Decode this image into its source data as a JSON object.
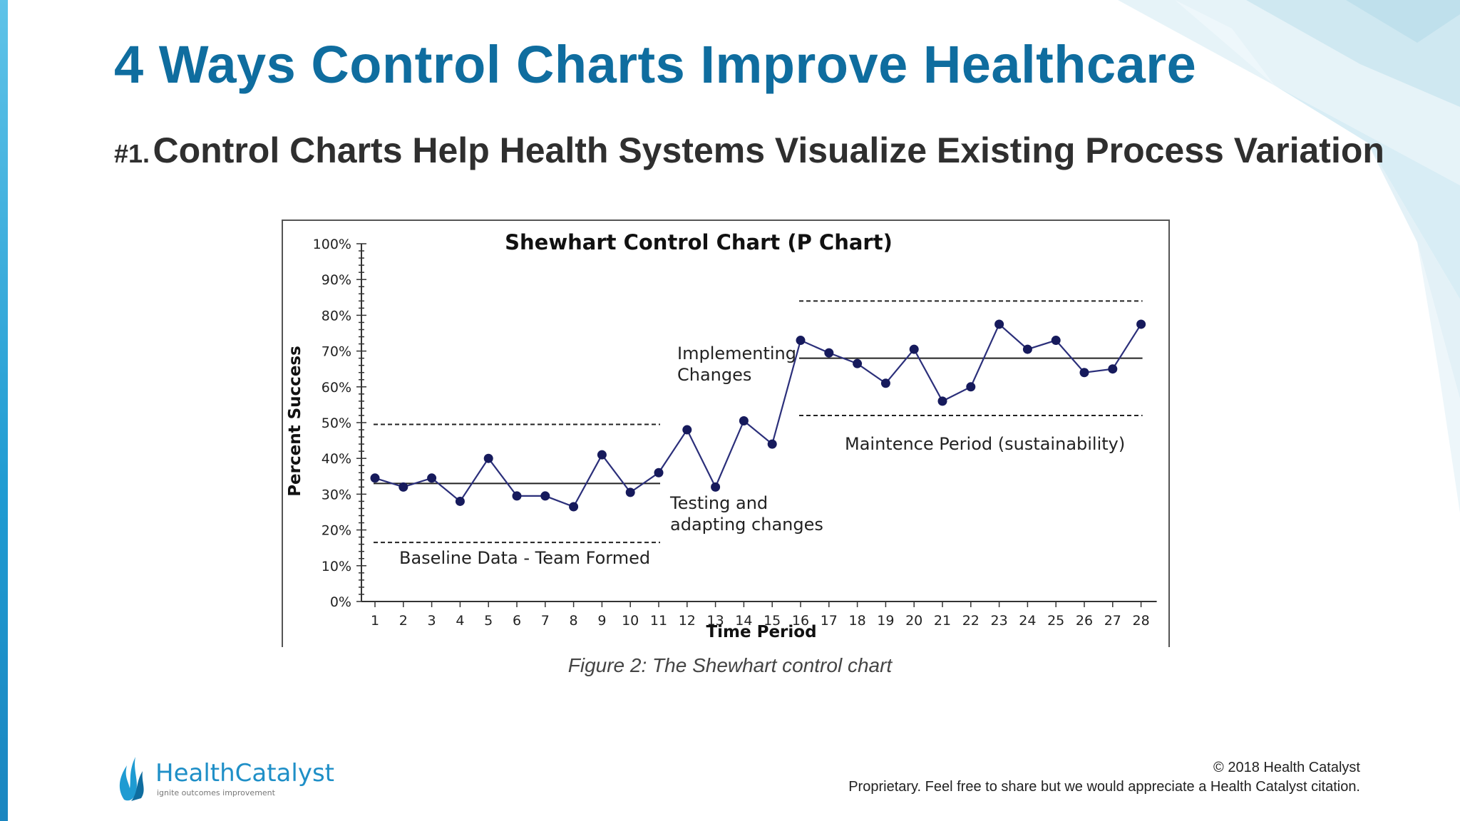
{
  "slide": {
    "title": "4 Ways Control Charts Improve Healthcare",
    "subtitle_number": "#1.",
    "subtitle_text": "Control Charts Help Health Systems Visualize Existing Process Variation",
    "caption": "Figure 2: The Shewhart control chart",
    "copyright": "© 2018 Health Catalyst",
    "proprietary": "Proprietary. Feel free to share but we would appreciate a Health Catalyst citation.",
    "logo_name": "HealthCatalyst",
    "logo_tagline": "ignite outcomes improvement"
  },
  "colors": {
    "title": "#0f6d9f",
    "accent": "#1f9bd2",
    "series": "#2b2f7a",
    "marker": "#161a5c"
  },
  "chart_data": {
    "type": "line",
    "title": "Shewhart Control Chart (P Chart)",
    "xlabel": "Time Period",
    "ylabel": "Percent Success",
    "ylim": [
      0,
      100
    ],
    "yticks": [
      "0%",
      "10%",
      "20%",
      "30%",
      "40%",
      "50%",
      "60%",
      "70%",
      "80%",
      "90%",
      "100%"
    ],
    "x": [
      1,
      2,
      3,
      4,
      5,
      6,
      7,
      8,
      9,
      10,
      11,
      12,
      13,
      14,
      15,
      16,
      17,
      18,
      19,
      20,
      21,
      22,
      23,
      24,
      25,
      26,
      27,
      28
    ],
    "series": [
      {
        "values": [
          34.5,
          32,
          34.5,
          28,
          40,
          29.5,
          29.5,
          26.5,
          41,
          30.5,
          36,
          48,
          32,
          50.5,
          44,
          73,
          69.5,
          66.5,
          61,
          70.5,
          56,
          60,
          77.5,
          70.5,
          73,
          64,
          65,
          77.5
        ]
      }
    ],
    "reference_lines": [
      {
        "kind": "center",
        "y": 33,
        "x_from": 1,
        "x_to": 11
      },
      {
        "kind": "upper_limit",
        "y": 49.5,
        "x_from": 1,
        "x_to": 11
      },
      {
        "kind": "lower_limit",
        "y": 16.5,
        "x_from": 1,
        "x_to": 11
      },
      {
        "kind": "center",
        "y": 68,
        "x_from": 16,
        "x_to": 28
      },
      {
        "kind": "upper_limit",
        "y": 84,
        "x_from": 16,
        "x_to": 28
      },
      {
        "kind": "lower_limit",
        "y": 52,
        "x_from": 16,
        "x_to": 28
      }
    ],
    "annotations": [
      {
        "text": "Baseline Data - Team Formed"
      },
      {
        "text": "Implementing"
      },
      {
        "text": "Changes"
      },
      {
        "text": "Testing  and"
      },
      {
        "text": "adapting changes"
      },
      {
        "text": "Maintence Period (sustainability)"
      }
    ]
  }
}
